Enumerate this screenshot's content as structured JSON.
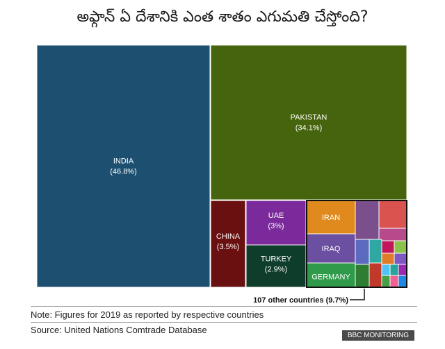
{
  "title": "అఫ్గాన్ ఏ దేశానికి ఎంత శాతం ఎగుమతి చేస్తోంది?",
  "chart_data": {
    "type": "treemap",
    "title": "అఫ్గాన్ ఏ దేశానికి ఎంత శాతం ఎగుమతి చేస్తోంది?",
    "items": [
      {
        "name": "INDIA",
        "label": "(46.8%)",
        "value": 46.8,
        "color": "#1d5070"
      },
      {
        "name": "PAKISTAN",
        "label": "(34.1%)",
        "value": 34.1,
        "color": "#46640d"
      },
      {
        "name": "CHINA",
        "label": "(3.5%)",
        "value": 3.5,
        "color": "#6a1010"
      },
      {
        "name": "UAE",
        "label": "(3%)",
        "value": 3.0,
        "color": "#7a2a9a"
      },
      {
        "name": "TURKEY",
        "label": "(2.9%)",
        "value": 2.9,
        "color": "#0e3d2c"
      },
      {
        "name": "IRAN",
        "label": "",
        "value": 2.3,
        "color": "#e08a1e"
      },
      {
        "name": "IRAQ",
        "label": "",
        "value": 2.0,
        "color": "#6b4fa0"
      },
      {
        "name": "GERMANY",
        "label": "",
        "value": 1.7,
        "color": "#2e9a4a"
      }
    ],
    "other": {
      "label": "107 other countries (9.7%)",
      "value": 9.7
    }
  },
  "note": "Note: Figures for 2019 as reported by respective countries",
  "source": "Source: United Nations Comtrade Database",
  "badge": "BBC MONITORING"
}
